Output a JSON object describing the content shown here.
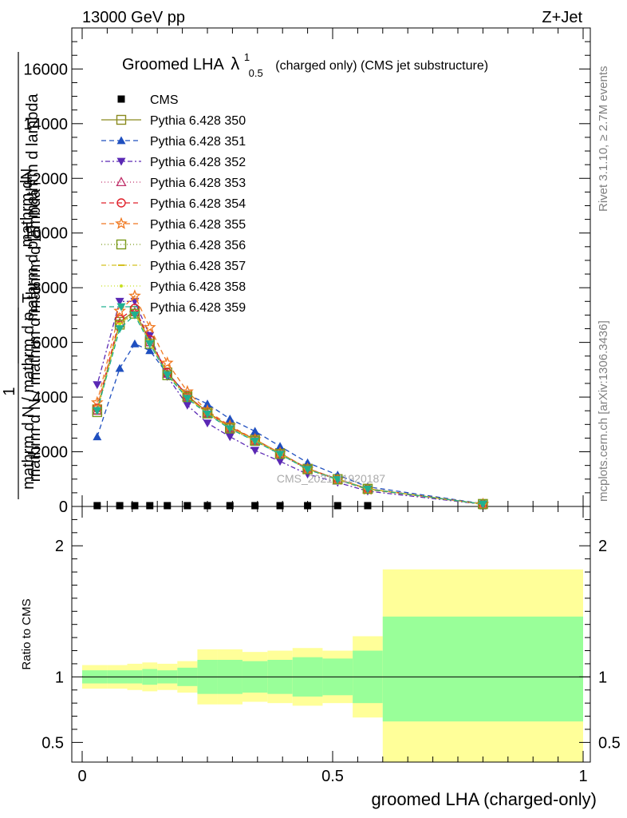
{
  "header": {
    "left": "13000 GeV pp",
    "right": "Z+Jet"
  },
  "side_labels": {
    "rivet": "Rivet 3.1.10, ≥ 2.7M events",
    "mcplots": "mcplots.cern.ch [arXiv:1306.3436]"
  },
  "main_panel": {
    "title_prefix": "Groomed LHA",
    "title_lambda": "λ",
    "title_sup": "1",
    "title_sub": "0.5",
    "title_suffix": "(charged only) (CMS jet substructure)",
    "ylabel_numerator": "mathrm dN",
    "ylabel_denominator": "mathrm d p_T mathrm d lambda",
    "ylabel_bottom_num": "1",
    "ylabel_bottom_den": "mathrm d N / mathrm d p_T",
    "ylabel_bottom_den2": "mathrm d N / mathrm d mathrm d lambda",
    "watermark": "CMS_2021_I1920187"
  },
  "ratio_panel": {
    "ylabel": "Ratio to CMS",
    "xlabel": "groomed LHA (charged-only)"
  },
  "chart_data": {
    "type": "line",
    "x": [
      0.03,
      0.075,
      0.105,
      0.135,
      0.17,
      0.21,
      0.25,
      0.295,
      0.345,
      0.395,
      0.45,
      0.51,
      0.57,
      0.8
    ],
    "xlim": [
      -0.02,
      1.0
    ],
    "ylim": [
      0,
      17500
    ],
    "yticks": [
      0,
      2000,
      4000,
      6000,
      8000,
      10000,
      12000,
      14000,
      16000
    ],
    "ytick_labels": [
      "0",
      "2000",
      "4000",
      "6000",
      "8000",
      "10000",
      "12000",
      "14000",
      "16000"
    ],
    "xticks": [
      0,
      0.5,
      1
    ],
    "xtick_labels": [
      "0",
      "0.5",
      "1"
    ],
    "series": [
      {
        "name": "CMS",
        "color": "#000000",
        "marker": "square-filled",
        "dash": "none",
        "values": [
          30,
          30,
          30,
          30,
          30,
          30,
          30,
          30,
          30,
          30,
          30,
          30,
          30,
          30
        ]
      },
      {
        "name": "Pythia 6.428 350",
        "color": "#8a8a1e",
        "marker": "square-open",
        "dash": "solid",
        "values": [
          3550,
          6750,
          7150,
          6050,
          4900,
          4050,
          3450,
          2900,
          2450,
          1950,
          1380,
          1000,
          650,
          90
        ]
      },
      {
        "name": "Pythia 6.428 351",
        "color": "#1f4fbf",
        "marker": "triangle-up-filled",
        "dash": "6,4",
        "values": [
          2550,
          5050,
          5950,
          5700,
          4850,
          4100,
          3750,
          3200,
          2750,
          2200,
          1600,
          1150,
          720,
          100
        ]
      },
      {
        "name": "Pythia 6.428 352",
        "color": "#5a28b4",
        "marker": "triangle-down-filled",
        "dash": "2,3,6,3",
        "values": [
          4450,
          7500,
          7500,
          6250,
          4750,
          3700,
          3050,
          2550,
          2050,
          1650,
          1180,
          880,
          560,
          80
        ]
      },
      {
        "name": "Pythia 6.428 353",
        "color": "#c0306a",
        "marker": "triangle-up-open",
        "dash": "1,3",
        "values": [
          3500,
          6700,
          7100,
          6000,
          4850,
          4000,
          3400,
          2850,
          2400,
          1900,
          1350,
          970,
          630,
          88
        ]
      },
      {
        "name": "Pythia 6.428 354",
        "color": "#e0202a",
        "marker": "circle-open",
        "dash": "6,4",
        "values": [
          3600,
          6850,
          7250,
          6100,
          4900,
          4050,
          3450,
          2900,
          2450,
          1950,
          1390,
          1000,
          650,
          90
        ]
      },
      {
        "name": "Pythia 6.428 355",
        "color": "#f07820",
        "marker": "star-open",
        "dash": "6,4",
        "values": [
          3800,
          7150,
          7700,
          6550,
          5250,
          4200,
          3500,
          2950,
          2450,
          1950,
          1370,
          980,
          620,
          85
        ]
      },
      {
        "name": "Pythia 6.428 356",
        "color": "#7a9a1a",
        "marker": "square-open",
        "dash": "1,3",
        "values": [
          3450,
          6650,
          7050,
          5950,
          4800,
          4000,
          3400,
          2850,
          2400,
          1920,
          1360,
          990,
          640,
          88
        ]
      },
      {
        "name": "Pythia 6.428 357",
        "color": "#d4c020",
        "marker": "dash",
        "dash": "6,3,1,3",
        "values": [
          3550,
          6700,
          7100,
          6000,
          4850,
          4000,
          3420,
          2880,
          2420,
          1930,
          1370,
          990,
          645,
          89
        ]
      },
      {
        "name": "Pythia 6.428 358",
        "color": "#c8e020",
        "marker": "dot",
        "dash": "1,3",
        "values": [
          3520,
          6680,
          7080,
          5980,
          4830,
          3990,
          3410,
          2870,
          2410,
          1920,
          1365,
          985,
          640,
          88
        ]
      },
      {
        "name": "Pythia 6.428 359",
        "color": "#20b090",
        "marker": "triangle-down-filled",
        "dash": "6,4",
        "values": [
          3500,
          6500,
          7000,
          5950,
          4800,
          3950,
          3380,
          2840,
          2390,
          1910,
          1355,
          980,
          635,
          87
        ]
      }
    ],
    "ratio": {
      "ylim": [
        0.35,
        2.3
      ],
      "yticks": [
        0.5,
        1,
        2
      ],
      "ytick_labels": [
        "0.5",
        "1",
        "2"
      ],
      "bin_edges": [
        0,
        0.05,
        0.09,
        0.12,
        0.15,
        0.19,
        0.23,
        0.27,
        0.32,
        0.37,
        0.42,
        0.48,
        0.54,
        0.6,
        1.0
      ],
      "stat_band": [
        [
          0.95,
          1.05
        ],
        [
          0.95,
          1.05
        ],
        [
          0.95,
          1.05
        ],
        [
          0.94,
          1.06
        ],
        [
          0.95,
          1.05
        ],
        [
          0.93,
          1.07
        ],
        [
          0.87,
          1.13
        ],
        [
          0.87,
          1.13
        ],
        [
          0.88,
          1.12
        ],
        [
          0.87,
          1.13
        ],
        [
          0.85,
          1.15
        ],
        [
          0.86,
          1.14
        ],
        [
          0.8,
          1.2
        ],
        [
          0.66,
          1.46
        ]
      ],
      "total_band": [
        [
          0.91,
          1.09
        ],
        [
          0.91,
          1.09
        ],
        [
          0.9,
          1.1
        ],
        [
          0.89,
          1.11
        ],
        [
          0.9,
          1.1
        ],
        [
          0.88,
          1.12
        ],
        [
          0.79,
          1.21
        ],
        [
          0.79,
          1.21
        ],
        [
          0.81,
          1.19
        ],
        [
          0.8,
          1.2
        ],
        [
          0.78,
          1.22
        ],
        [
          0.8,
          1.2
        ],
        [
          0.69,
          1.31
        ],
        [
          0.35,
          1.82
        ]
      ]
    }
  }
}
